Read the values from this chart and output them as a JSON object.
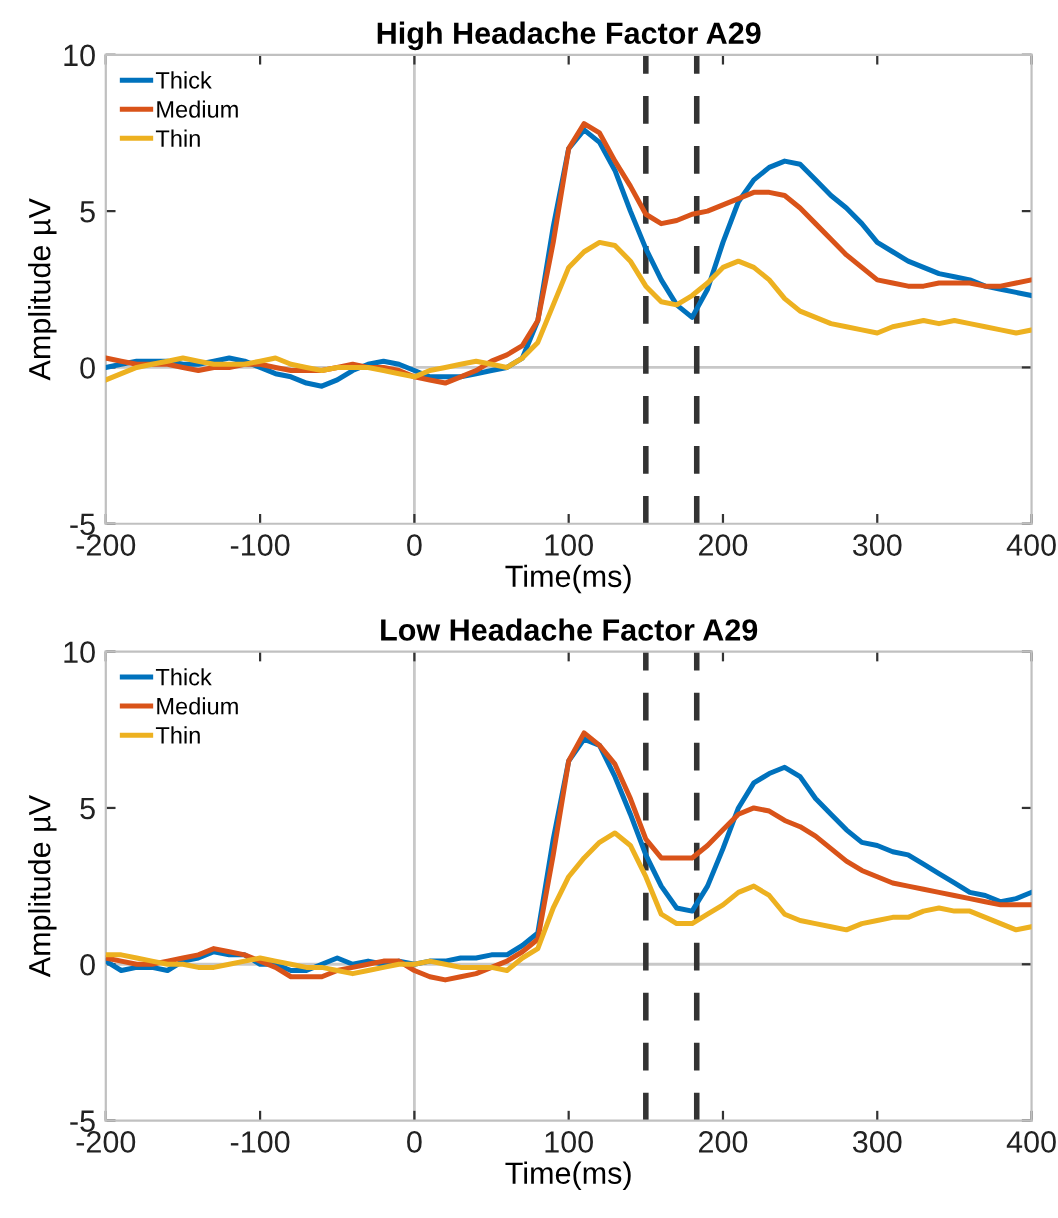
{
  "chart_data": [
    {
      "type": "line",
      "title": "High Headache Factor A29",
      "xlabel": "Time(ms)",
      "ylabel": "Amplitude µV",
      "x": [
        -200,
        -190,
        -180,
        -170,
        -160,
        -150,
        -140,
        -130,
        -120,
        -110,
        -100,
        -90,
        -80,
        -70,
        -60,
        -50,
        -40,
        -30,
        -20,
        -10,
        0,
        10,
        20,
        30,
        40,
        50,
        60,
        70,
        80,
        90,
        100,
        110,
        120,
        130,
        140,
        150,
        160,
        170,
        180,
        190,
        200,
        210,
        220,
        230,
        240,
        250,
        260,
        270,
        280,
        290,
        300,
        310,
        320,
        330,
        340,
        350,
        360,
        370,
        380,
        390,
        400
      ],
      "series": [
        {
          "name": "Thick",
          "color": "#0072bd",
          "values": [
            0.0,
            0.1,
            0.2,
            0.2,
            0.2,
            0.1,
            0.1,
            0.2,
            0.3,
            0.2,
            0.0,
            -0.2,
            -0.3,
            -0.5,
            -0.6,
            -0.4,
            -0.1,
            0.1,
            0.2,
            0.1,
            -0.1,
            -0.3,
            -0.3,
            -0.3,
            -0.2,
            -0.1,
            0.0,
            0.3,
            1.5,
            4.5,
            7.0,
            7.6,
            7.2,
            6.3,
            5.0,
            3.8,
            2.8,
            2.0,
            1.6,
            2.5,
            4.0,
            5.3,
            6.0,
            6.4,
            6.6,
            6.5,
            6.0,
            5.5,
            5.1,
            4.6,
            4.0,
            3.7,
            3.4,
            3.2,
            3.0,
            2.9,
            2.8,
            2.6,
            2.5,
            2.4,
            2.3
          ]
        },
        {
          "name": "Medium",
          "color": "#d95319",
          "values": [
            0.3,
            0.2,
            0.1,
            0.1,
            0.1,
            0.0,
            -0.1,
            0.0,
            0.0,
            0.1,
            0.1,
            0.0,
            -0.1,
            -0.1,
            -0.1,
            0.0,
            0.1,
            0.0,
            0.0,
            -0.1,
            -0.3,
            -0.4,
            -0.5,
            -0.3,
            -0.1,
            0.2,
            0.4,
            0.7,
            1.5,
            4.0,
            7.0,
            7.8,
            7.5,
            6.6,
            5.8,
            4.9,
            4.6,
            4.7,
            4.9,
            5.0,
            5.2,
            5.4,
            5.6,
            5.6,
            5.5,
            5.1,
            4.6,
            4.1,
            3.6,
            3.2,
            2.8,
            2.7,
            2.6,
            2.6,
            2.7,
            2.7,
            2.7,
            2.6,
            2.6,
            2.7,
            2.8
          ]
        },
        {
          "name": "Thin",
          "color": "#edb120",
          "values": [
            -0.4,
            -0.2,
            0.0,
            0.1,
            0.2,
            0.3,
            0.2,
            0.1,
            0.1,
            0.1,
            0.2,
            0.3,
            0.1,
            0.0,
            -0.1,
            0.0,
            0.0,
            0.0,
            -0.1,
            -0.2,
            -0.3,
            -0.1,
            0.0,
            0.1,
            0.2,
            0.1,
            0.0,
            0.3,
            0.8,
            2.0,
            3.2,
            3.7,
            4.0,
            3.9,
            3.4,
            2.6,
            2.1,
            2.0,
            2.3,
            2.7,
            3.2,
            3.4,
            3.2,
            2.8,
            2.2,
            1.8,
            1.6,
            1.4,
            1.3,
            1.2,
            1.1,
            1.3,
            1.4,
            1.5,
            1.4,
            1.5,
            1.4,
            1.3,
            1.2,
            1.1,
            1.2
          ]
        }
      ],
      "xlim": [
        -200,
        400
      ],
      "ylim": [
        -5,
        10
      ],
      "xticks": [
        -200,
        -100,
        0,
        100,
        200,
        300,
        400
      ],
      "yticks": [
        -5,
        0,
        5,
        10
      ],
      "ref_lines": [
        {
          "axis": "x",
          "value": 0,
          "color": "#c8c8c8",
          "line_style": "solid"
        },
        {
          "axis": "y",
          "value": 0,
          "color": "#c8c8c8",
          "line_style": "solid"
        },
        {
          "axis": "x",
          "value": 150,
          "color": "#333333",
          "line_style": "dashed"
        },
        {
          "axis": "x",
          "value": 183,
          "color": "#333333",
          "line_style": "dashed"
        }
      ],
      "legend": "top left",
      "grid": false,
      "line_style": "solid",
      "marker": "none"
    },
    {
      "type": "line",
      "title": "Low Headache Factor A29",
      "xlabel": "Time(ms)",
      "ylabel": "Amplitude µV",
      "x": [
        -200,
        -190,
        -180,
        -170,
        -160,
        -150,
        -140,
        -130,
        -120,
        -110,
        -100,
        -90,
        -80,
        -70,
        -60,
        -50,
        -40,
        -30,
        -20,
        -10,
        0,
        10,
        20,
        30,
        40,
        50,
        60,
        70,
        80,
        90,
        100,
        110,
        120,
        130,
        140,
        150,
        160,
        170,
        180,
        190,
        200,
        210,
        220,
        230,
        240,
        250,
        260,
        270,
        280,
        290,
        300,
        310,
        320,
        330,
        340,
        350,
        360,
        370,
        380,
        390,
        400
      ],
      "series": [
        {
          "name": "Thick",
          "color": "#0072bd",
          "values": [
            0.1,
            -0.2,
            -0.1,
            -0.1,
            -0.2,
            0.1,
            0.2,
            0.4,
            0.3,
            0.3,
            0.0,
            0.0,
            -0.2,
            -0.2,
            0.0,
            0.2,
            0.0,
            0.1,
            0.0,
            0.1,
            0.0,
            0.1,
            0.1,
            0.2,
            0.2,
            0.3,
            0.3,
            0.6,
            1.0,
            4.0,
            6.5,
            7.2,
            7.0,
            6.0,
            4.8,
            3.5,
            2.5,
            1.8,
            1.7,
            2.5,
            3.7,
            5.0,
            5.8,
            6.1,
            6.3,
            6.0,
            5.3,
            4.8,
            4.3,
            3.9,
            3.8,
            3.6,
            3.5,
            3.2,
            2.9,
            2.6,
            2.3,
            2.2,
            2.0,
            2.1,
            2.3
          ]
        },
        {
          "name": "Medium",
          "color": "#d95319",
          "values": [
            0.2,
            0.1,
            0.0,
            0.0,
            0.1,
            0.2,
            0.3,
            0.5,
            0.4,
            0.3,
            0.1,
            -0.1,
            -0.4,
            -0.4,
            -0.4,
            -0.2,
            -0.1,
            0.0,
            0.1,
            0.1,
            -0.2,
            -0.4,
            -0.5,
            -0.4,
            -0.3,
            -0.1,
            0.1,
            0.4,
            0.8,
            3.5,
            6.5,
            7.4,
            7.0,
            6.4,
            5.3,
            4.0,
            3.4,
            3.4,
            3.4,
            3.8,
            4.3,
            4.8,
            5.0,
            4.9,
            4.6,
            4.4,
            4.1,
            3.7,
            3.3,
            3.0,
            2.8,
            2.6,
            2.5,
            2.4,
            2.3,
            2.2,
            2.1,
            2.0,
            1.9,
            1.9,
            1.9
          ]
        },
        {
          "name": "Thin",
          "color": "#edb120",
          "values": [
            0.3,
            0.3,
            0.2,
            0.1,
            0.0,
            0.0,
            -0.1,
            -0.1,
            0.0,
            0.1,
            0.2,
            0.1,
            0.0,
            -0.1,
            -0.1,
            -0.2,
            -0.3,
            -0.2,
            -0.1,
            0.0,
            0.0,
            0.1,
            0.0,
            -0.1,
            -0.1,
            -0.1,
            -0.2,
            0.2,
            0.5,
            1.8,
            2.8,
            3.4,
            3.9,
            4.2,
            3.8,
            2.8,
            1.6,
            1.3,
            1.3,
            1.6,
            1.9,
            2.3,
            2.5,
            2.2,
            1.6,
            1.4,
            1.3,
            1.2,
            1.1,
            1.3,
            1.4,
            1.5,
            1.5,
            1.7,
            1.8,
            1.7,
            1.7,
            1.5,
            1.3,
            1.1,
            1.2
          ]
        }
      ],
      "xlim": [
        -200,
        400
      ],
      "ylim": [
        -5,
        10
      ],
      "xticks": [
        -200,
        -100,
        0,
        100,
        200,
        300,
        400
      ],
      "yticks": [
        -5,
        0,
        5,
        10
      ],
      "ref_lines": [
        {
          "axis": "x",
          "value": 0,
          "color": "#c8c8c8",
          "line_style": "solid"
        },
        {
          "axis": "y",
          "value": 0,
          "color": "#c8c8c8",
          "line_style": "solid"
        },
        {
          "axis": "x",
          "value": 150,
          "color": "#333333",
          "line_style": "dashed"
        },
        {
          "axis": "x",
          "value": 183,
          "color": "#333333",
          "line_style": "dashed"
        }
      ],
      "legend": "top left",
      "grid": false,
      "line_style": "solid",
      "marker": "none"
    }
  ]
}
